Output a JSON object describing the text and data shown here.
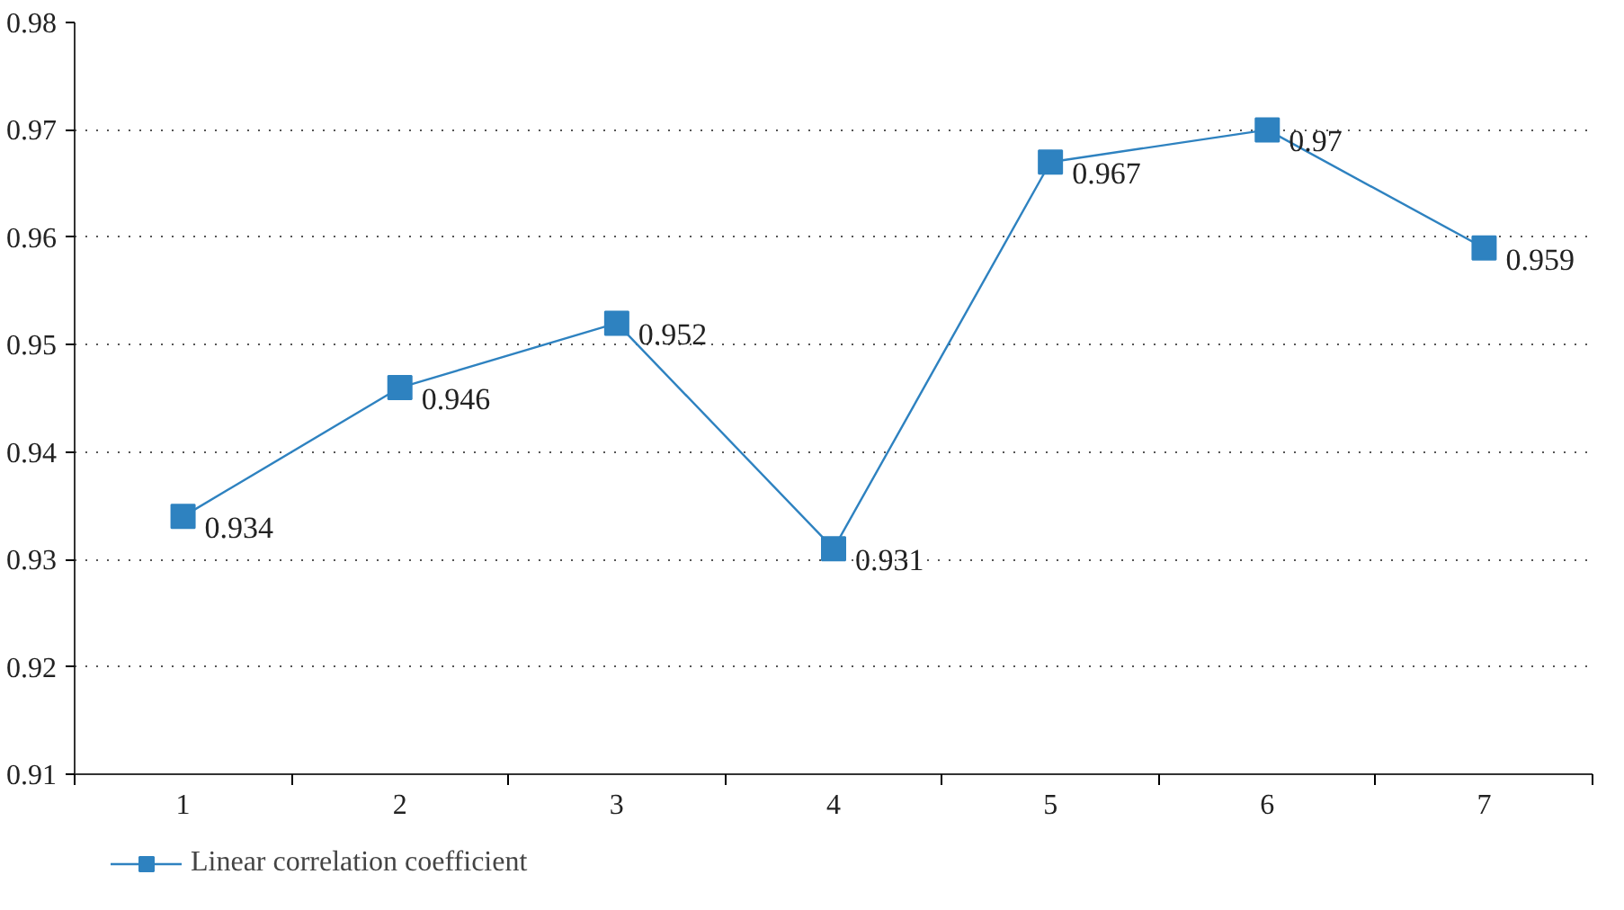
{
  "chart_data": {
    "type": "line",
    "categories": [
      "1",
      "2",
      "3",
      "4",
      "5",
      "6",
      "7"
    ],
    "series": [
      {
        "name": "Linear correlation coefficient",
        "color": "#2e82c0",
        "values": [
          0.934,
          0.946,
          0.952,
          0.931,
          0.967,
          0.97,
          0.959
        ]
      }
    ],
    "ylim": [
      0.91,
      0.98
    ],
    "yticks": [
      0.91,
      0.92,
      0.93,
      0.94,
      0.95,
      0.96,
      0.97,
      0.98
    ],
    "grid": "y",
    "legend": "bottom left",
    "marker": "square",
    "line_style": "solid",
    "data_labels": true
  }
}
